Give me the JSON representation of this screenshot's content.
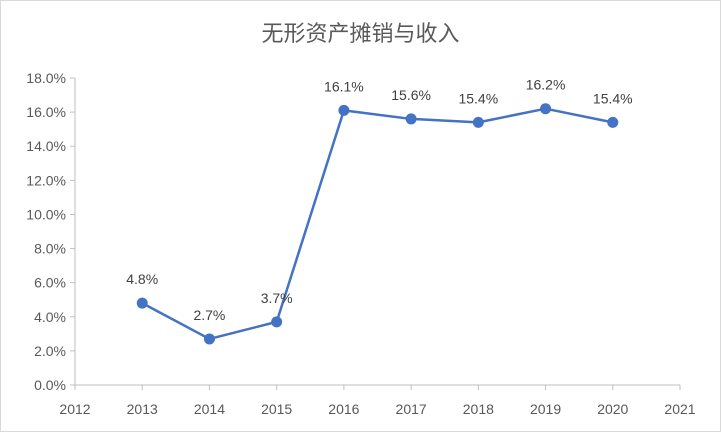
{
  "chart_data": {
    "type": "line",
    "title": "无形资产摊销与收入",
    "x_ticks": [
      "2012",
      "2013",
      "2014",
      "2015",
      "2016",
      "2017",
      "2018",
      "2019",
      "2020",
      "2021"
    ],
    "y_ticks": [
      "0.0%",
      "2.0%",
      "4.0%",
      "6.0%",
      "8.0%",
      "10.0%",
      "12.0%",
      "14.0%",
      "16.0%",
      "18.0%"
    ],
    "ylim": [
      0,
      18
    ],
    "xlim": [
      2012,
      2021
    ],
    "grid": false,
    "legend": "none",
    "color": "#4472c4",
    "series": [
      {
        "x": [
          2013,
          2014,
          2015,
          2016,
          2017,
          2018,
          2019,
          2020
        ],
        "values": [
          4.8,
          2.7,
          3.7,
          16.1,
          15.6,
          15.4,
          16.2,
          15.4
        ],
        "labels": [
          "4.8%",
          "2.7%",
          "3.7%",
          "16.1%",
          "15.6%",
          "15.4%",
          "16.2%",
          "15.4%"
        ]
      }
    ]
  }
}
